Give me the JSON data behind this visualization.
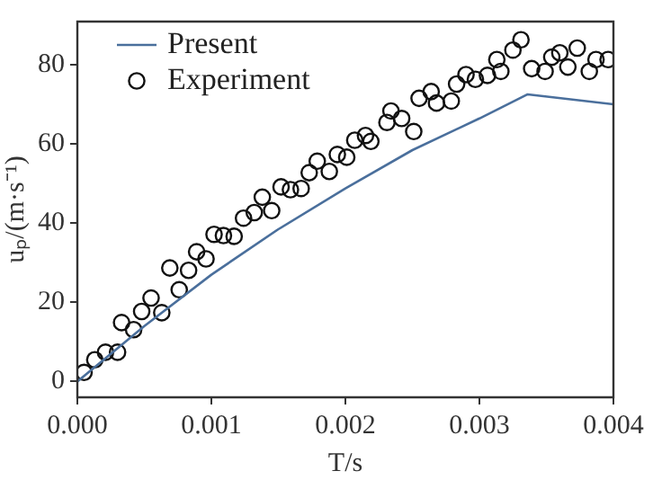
{
  "chart_data": {
    "type": "scatter",
    "xlabel": "T/s",
    "ylabel": "uₚ/(m·s⁻¹)",
    "xlim": [
      0,
      0.004
    ],
    "xticks": [
      {
        "value": 0,
        "label": "0.000"
      },
      {
        "value": 0.001,
        "label": "0.001"
      },
      {
        "value": 0.002,
        "label": "0.002"
      },
      {
        "value": 0.003,
        "label": "0.003"
      },
      {
        "value": 0.004,
        "label": "0.004"
      }
    ],
    "ylim": [
      -4,
      91
    ],
    "yticks": [
      0,
      20,
      40,
      60,
      80
    ],
    "grid": false,
    "legend": "top left",
    "series": [
      {
        "name": "Present",
        "type": "line",
        "marker": "none",
        "line_style": "solid",
        "color": "#4a6f9c",
        "x": [
          0,
          0.0005,
          0.001,
          0.0015,
          0.002,
          0.0025,
          0.003,
          0.00336,
          0.004
        ],
        "values": [
          0,
          14,
          27,
          38.5,
          48.8,
          58.5,
          66.5,
          72.6,
          70.1
        ]
      },
      {
        "name": "Experiment",
        "marker": "circle",
        "color": "#111111",
        "x": [
          5e-05,
          0.00013,
          0.00021,
          0.0003,
          0.00033,
          0.00042,
          0.00048,
          0.00055,
          0.00063,
          0.00069,
          0.00076,
          0.00083,
          0.00089,
          0.00096,
          0.00102,
          0.00109,
          0.00117,
          0.00124,
          0.00132,
          0.00138,
          0.00145,
          0.00152,
          0.00159,
          0.00167,
          0.00173,
          0.00179,
          0.00188,
          0.00194,
          0.00201,
          0.00207,
          0.00215,
          0.00219,
          0.00231,
          0.00234,
          0.00242,
          0.00251,
          0.00255,
          0.00264,
          0.00268,
          0.00279,
          0.00283,
          0.0029,
          0.00297,
          0.00306,
          0.00316,
          0.00313,
          0.00325,
          0.00331,
          0.00339,
          0.00349,
          0.00354,
          0.0036,
          0.00366,
          0.00373,
          0.00382,
          0.00387,
          0.00396
        ],
        "values": [
          2.3,
          5.5,
          7.4,
          7.4,
          14.9,
          13.1,
          17.7,
          21.1,
          17.4,
          28.7,
          23.2,
          28.1,
          32.8,
          31,
          37.2,
          36.9,
          36.7,
          41.3,
          42.7,
          46.6,
          43.2,
          49.2,
          48.5,
          48.8,
          52.8,
          55.7,
          53.1,
          57.4,
          56.7,
          61,
          62.2,
          60.7,
          65.5,
          68.4,
          66.5,
          63.2,
          71.6,
          73.3,
          70.4,
          70.9,
          75.2,
          77.6,
          76.4,
          77.4,
          78.4,
          81.4,
          83.8,
          86.4,
          79.1,
          78.4,
          82,
          83.1,
          79.5,
          84.3,
          78.4,
          81.4,
          81.4
        ]
      }
    ]
  }
}
